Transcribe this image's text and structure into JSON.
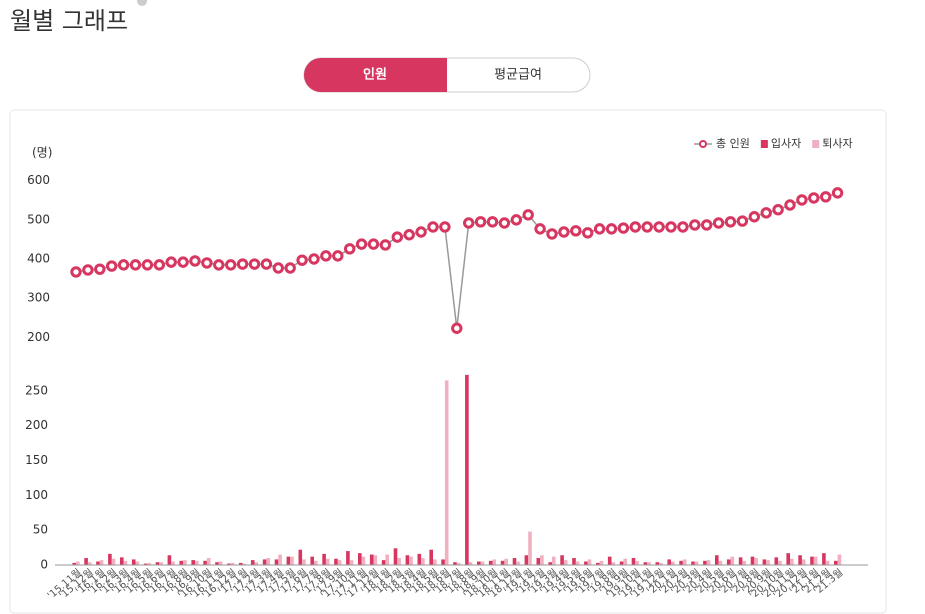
{
  "header": {
    "title": "월별 그래프"
  },
  "tabs": [
    "인원",
    "평균급여"
  ],
  "chart_data": [
    {
      "type": "line",
      "unit_label": "(명)",
      "series": [
        {
          "name": "총 인원",
          "color": "#d6365f",
          "line_color": "#999999",
          "values": [
            367,
            372,
            374,
            382,
            385,
            385,
            385,
            385,
            392,
            392,
            395,
            390,
            385,
            385,
            387,
            387,
            387,
            377,
            377,
            397,
            400,
            408,
            408,
            426,
            438,
            438,
            436,
            456,
            462,
            469,
            482,
            482,
            223,
            492,
            495,
            495,
            492,
            500,
            513,
            477,
            464,
            469,
            472,
            467,
            477,
            477,
            479,
            482,
            482,
            482,
            482,
            482,
            487,
            487,
            492,
            495,
            497,
            508,
            518,
            526,
            538,
            551,
            556,
            559,
            569
          ]
        }
      ],
      "ylim": [
        170,
        630
      ],
      "yticks": [
        200,
        300,
        400,
        500,
        600
      ]
    },
    {
      "type": "bar",
      "categories": [
        "'15.11월",
        "'15.12월",
        "'16.1월",
        "'16.2월",
        "'16.3월",
        "'16.4월",
        "'16.5월",
        "'16.6월",
        "'16.7월",
        "'16.8월",
        "'16.9월",
        "'16.10월",
        "'16.11월",
        "'16.12월",
        "'17.1월",
        "'17.2월",
        "'17.3월",
        "'17.4월",
        "'17.5월",
        "'17.6월",
        "'17.7월",
        "'17.8월",
        "'17.9월",
        "'17.10월",
        "'17.11월",
        "'17.12월",
        "'18.1월",
        "'18.2월",
        "'18.3월",
        "'18.4월",
        "'18.5월",
        "'18.6월",
        "'18.7월",
        "'18.8월",
        "'18.9월",
        "'18.10월",
        "'18.11월",
        "'18.12월",
        "'19.1월",
        "'19.2월",
        "'19.3월",
        "'19.4월",
        "'19.5월",
        "'19.6월",
        "'19.7월",
        "'19.8월",
        "'19.9월",
        "'19.10월",
        "'19.11월",
        "'19.12월",
        "'20.1월",
        "'20.2월",
        "'20.3월",
        "'20.4월",
        "'20.5월",
        "'20.6월",
        "'20.7월",
        "'20.8월",
        "'20.9월",
        "'20.10월",
        "'20.11월",
        "'20.12월",
        "'21.1월",
        "'21.2월",
        "'21.3월"
      ],
      "series": [
        {
          "name": "입사자",
          "color": "#d6365f",
          "values": [
            3,
            10,
            5,
            16,
            11,
            8,
            2,
            4,
            14,
            6,
            7,
            6,
            4,
            2,
            3,
            7,
            8,
            8,
            12,
            22,
            12,
            16,
            9,
            20,
            17,
            15,
            7,
            24,
            14,
            16,
            22,
            8,
            4,
            273,
            5,
            6,
            6,
            10,
            14,
            10,
            4,
            14,
            10,
            5,
            3,
            12,
            5,
            10,
            4,
            4,
            8,
            6,
            5,
            6,
            14,
            8,
            11,
            12,
            8,
            11,
            17,
            14,
            12,
            17,
            6
          ]
        },
        {
          "name": "퇴사자",
          "color": "#f0b0c0",
          "values": [
            5,
            4,
            7,
            9,
            6,
            5,
            3,
            4,
            5,
            7,
            6,
            10,
            5,
            3,
            2,
            4,
            10,
            15,
            12,
            8,
            6,
            9,
            7,
            7,
            12,
            14,
            15,
            10,
            12,
            10,
            8,
            265,
            3,
            4,
            5,
            8,
            9,
            5,
            48,
            14,
            12,
            7,
            5,
            8,
            6,
            4,
            9,
            6,
            4,
            3,
            5,
            8,
            5,
            7,
            6,
            12,
            6,
            10,
            7,
            6,
            9,
            8,
            12,
            6,
            15
          ]
        }
      ],
      "ylim": [
        0,
        280
      ],
      "yticks": [
        0,
        50,
        100,
        150,
        200,
        250
      ]
    }
  ]
}
